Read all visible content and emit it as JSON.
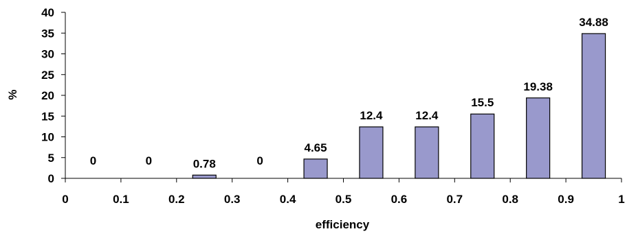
{
  "chart_data": {
    "type": "bar",
    "xlabel": "efficiency",
    "ylabel": "%",
    "xlim": [
      0,
      1
    ],
    "ylim": [
      0,
      40
    ],
    "x_ticks": [
      "0",
      "0.1",
      "0.2",
      "0.3",
      "0.4",
      "0.5",
      "0.6",
      "0.7",
      "0.8",
      "0.9",
      "1"
    ],
    "y_ticks": [
      "0",
      "5",
      "10",
      "15",
      "20",
      "25",
      "30",
      "35",
      "40"
    ],
    "bars": [
      {
        "x_from": 0.0,
        "x_to": 0.1,
        "value": 0,
        "label": "0"
      },
      {
        "x_from": 0.1,
        "x_to": 0.2,
        "value": 0,
        "label": "0"
      },
      {
        "x_from": 0.2,
        "x_to": 0.3,
        "value": 0.78,
        "label": "0.78"
      },
      {
        "x_from": 0.3,
        "x_to": 0.4,
        "value": 0,
        "label": "0"
      },
      {
        "x_from": 0.4,
        "x_to": 0.5,
        "value": 4.65,
        "label": "4.65"
      },
      {
        "x_from": 0.5,
        "x_to": 0.6,
        "value": 12.4,
        "label": "12.4"
      },
      {
        "x_from": 0.6,
        "x_to": 0.7,
        "value": 12.4,
        "label": "12.4"
      },
      {
        "x_from": 0.7,
        "x_to": 0.8,
        "value": 15.5,
        "label": "15.5"
      },
      {
        "x_from": 0.8,
        "x_to": 0.9,
        "value": 19.38,
        "label": "19.38"
      },
      {
        "x_from": 0.9,
        "x_to": 1.0,
        "value": 34.88,
        "label": "34.88"
      }
    ],
    "grid": false,
    "legend": "none",
    "colors": {
      "bar_fill": "#9999cc",
      "bar_stroke": "#000000",
      "axis": "#000000"
    }
  }
}
